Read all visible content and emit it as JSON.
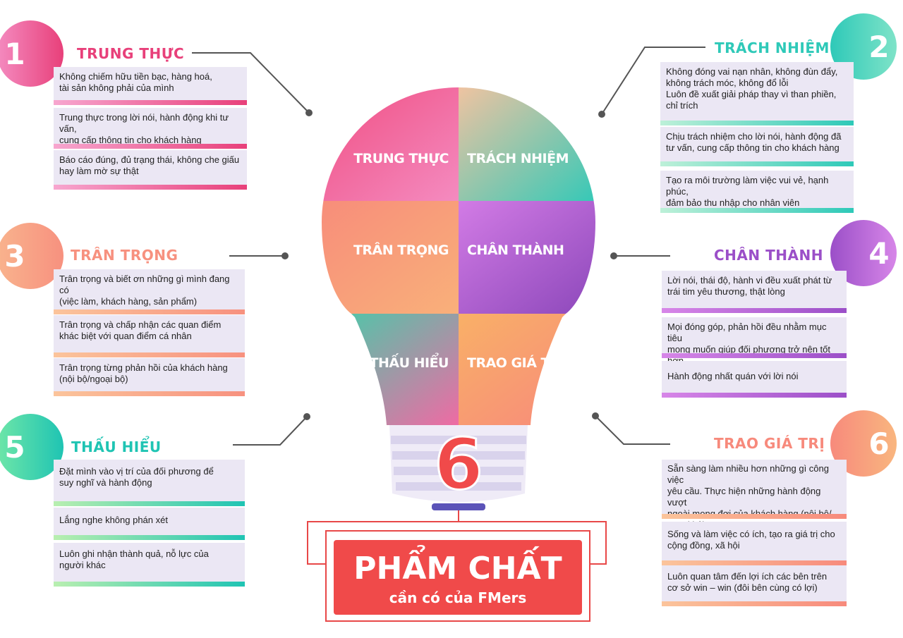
{
  "bulb": {
    "segments": [
      "TRUNG THỰC",
      "TRÁCH NHIỆM",
      "TRÂN TRỌNG",
      "CHÂN THÀNH",
      "THẤU HIỂU",
      "TRAO GIÁ TRỊ"
    ],
    "number": "6"
  },
  "banner": {
    "title": "PHẨM CHẤT",
    "subtitle": "cần có của FMers"
  },
  "sections": [
    {
      "number": "1",
      "title": "TRUNG THỰC",
      "color": "#e8407a",
      "items": [
        "Không chiếm hữu tiền bạc, hàng hoá,\ntài sản không phải của mình",
        "Trung thực trong lời nói, hành động khi tư vấn,\ncung cấp thông tin cho khách hàng",
        "Báo cáo đúng, đủ trạng thái, không che giấu\nhay làm mờ sự thật"
      ]
    },
    {
      "number": "2",
      "title": "TRÁCH NHIỆM",
      "color": "#2ec9b8",
      "items": [
        "Không đóng vai nạn nhân, không đùn đẩy,\nkhông trách móc, không đổ lỗi\nLuôn đề xuất giải pháp thay vì than phiền,\nchỉ trích",
        "Chịu trách nhiệm cho lời nói, hành động đã\ntư vấn, cung cấp thông tin cho khách hàng",
        "Tạo ra môi trường làm việc vui vẻ, hạnh phúc,\nđảm bảo thu nhập cho nhân viên"
      ]
    },
    {
      "number": "3",
      "title": "TRÂN TRỌNG",
      "color": "#f7917f",
      "items": [
        "Trân trọng và biết ơn những gì mình đang có\n(việc làm, khách hàng, sản phẩm)",
        "Trân trọng và chấp nhận các quan điểm\nkhác biệt với quan điểm cá nhân",
        "Trân trọng từng phản hồi của khách hàng\n(nội bộ/ngoại bộ)"
      ]
    },
    {
      "number": "4",
      "title": "CHÂN THÀNH",
      "color": "#9b4fc8",
      "items": [
        "Lời nói, thái độ, hành vi đều xuất phát từ\ntrái tim yêu thương, thật lòng",
        "Mọi đóng góp, phản hồi đều nhằm mục tiêu\nmong muốn giúp đối phương trở nên tốt hơn",
        "Hành động nhất quán với lời nói"
      ]
    },
    {
      "number": "5",
      "title": "THẤU HIỂU",
      "color": "#1fc4b3",
      "items": [
        "Đặt mình vào vị trí của đối phương để\nsuy nghĩ và hành động",
        "Lắng nghe không phán xét",
        "Luôn ghi nhận thành quả, nỗ lực của\nngười khác"
      ]
    },
    {
      "number": "6",
      "title": "TRAO GIÁ TRỊ",
      "color": "#f78a7c",
      "items": [
        "Sẵn sàng làm nhiều hơn những gì công việc\nyêu cầu. Thực hiện những hành động vượt\nngoài mong đợi của khách hàng (nội bộ/\nngoại bộ)",
        "Sống và làm việc có ích, tạo ra giá trị cho\ncộng đồng, xã hội",
        "Luôn quan tâm đến lợi ích các bên trên\ncơ sở win – win (đôi bên cùng có lợi)"
      ]
    }
  ]
}
